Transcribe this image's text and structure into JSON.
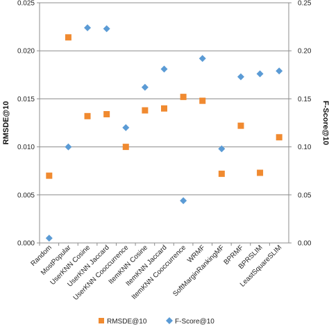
{
  "chart_data": {
    "type": "scatter",
    "categories": [
      "Random",
      "MostPopular",
      "UserKNN Cosine",
      "UserKNN Jaccard",
      "UserKNN Cooccurrence",
      "ItemKNN Cosine",
      "ItemKNN Jaccard",
      "ItemKNN Cooccurrence",
      "WRMF",
      "SoftMarginRankingMF",
      "BPRMF",
      "BPRSLIM",
      "LeastSquareSLIM"
    ],
    "series": [
      {
        "name": "RMSDE@10",
        "axis": "left",
        "marker": "square",
        "color": "#F08A30",
        "values": [
          0.007,
          0.0214,
          0.0132,
          0.0134,
          0.01,
          0.0138,
          0.014,
          0.0152,
          0.0148,
          0.0072,
          0.0122,
          0.0073,
          0.011
        ]
      },
      {
        "name": "F-Score@10",
        "axis": "right",
        "marker": "diamond",
        "color": "#5B9BD5",
        "values": [
          0.005,
          0.1,
          0.224,
          0.223,
          0.12,
          0.162,
          0.181,
          0.044,
          0.192,
          0.098,
          0.173,
          0.176,
          0.179
        ]
      }
    ],
    "ylabel": "RMSDE@10",
    "y2label": "F-Score@10",
    "ylim": [
      0,
      0.025
    ],
    "y2lim": [
      0,
      0.25
    ],
    "yticks": [
      "0.000",
      "0.005",
      "0.010",
      "0.015",
      "0.020",
      "0.025"
    ],
    "y2ticks": [
      "0.00",
      "0.05",
      "0.10",
      "0.15",
      "0.20",
      "0.25"
    ],
    "grid": true,
    "legend_position": "bottom"
  }
}
